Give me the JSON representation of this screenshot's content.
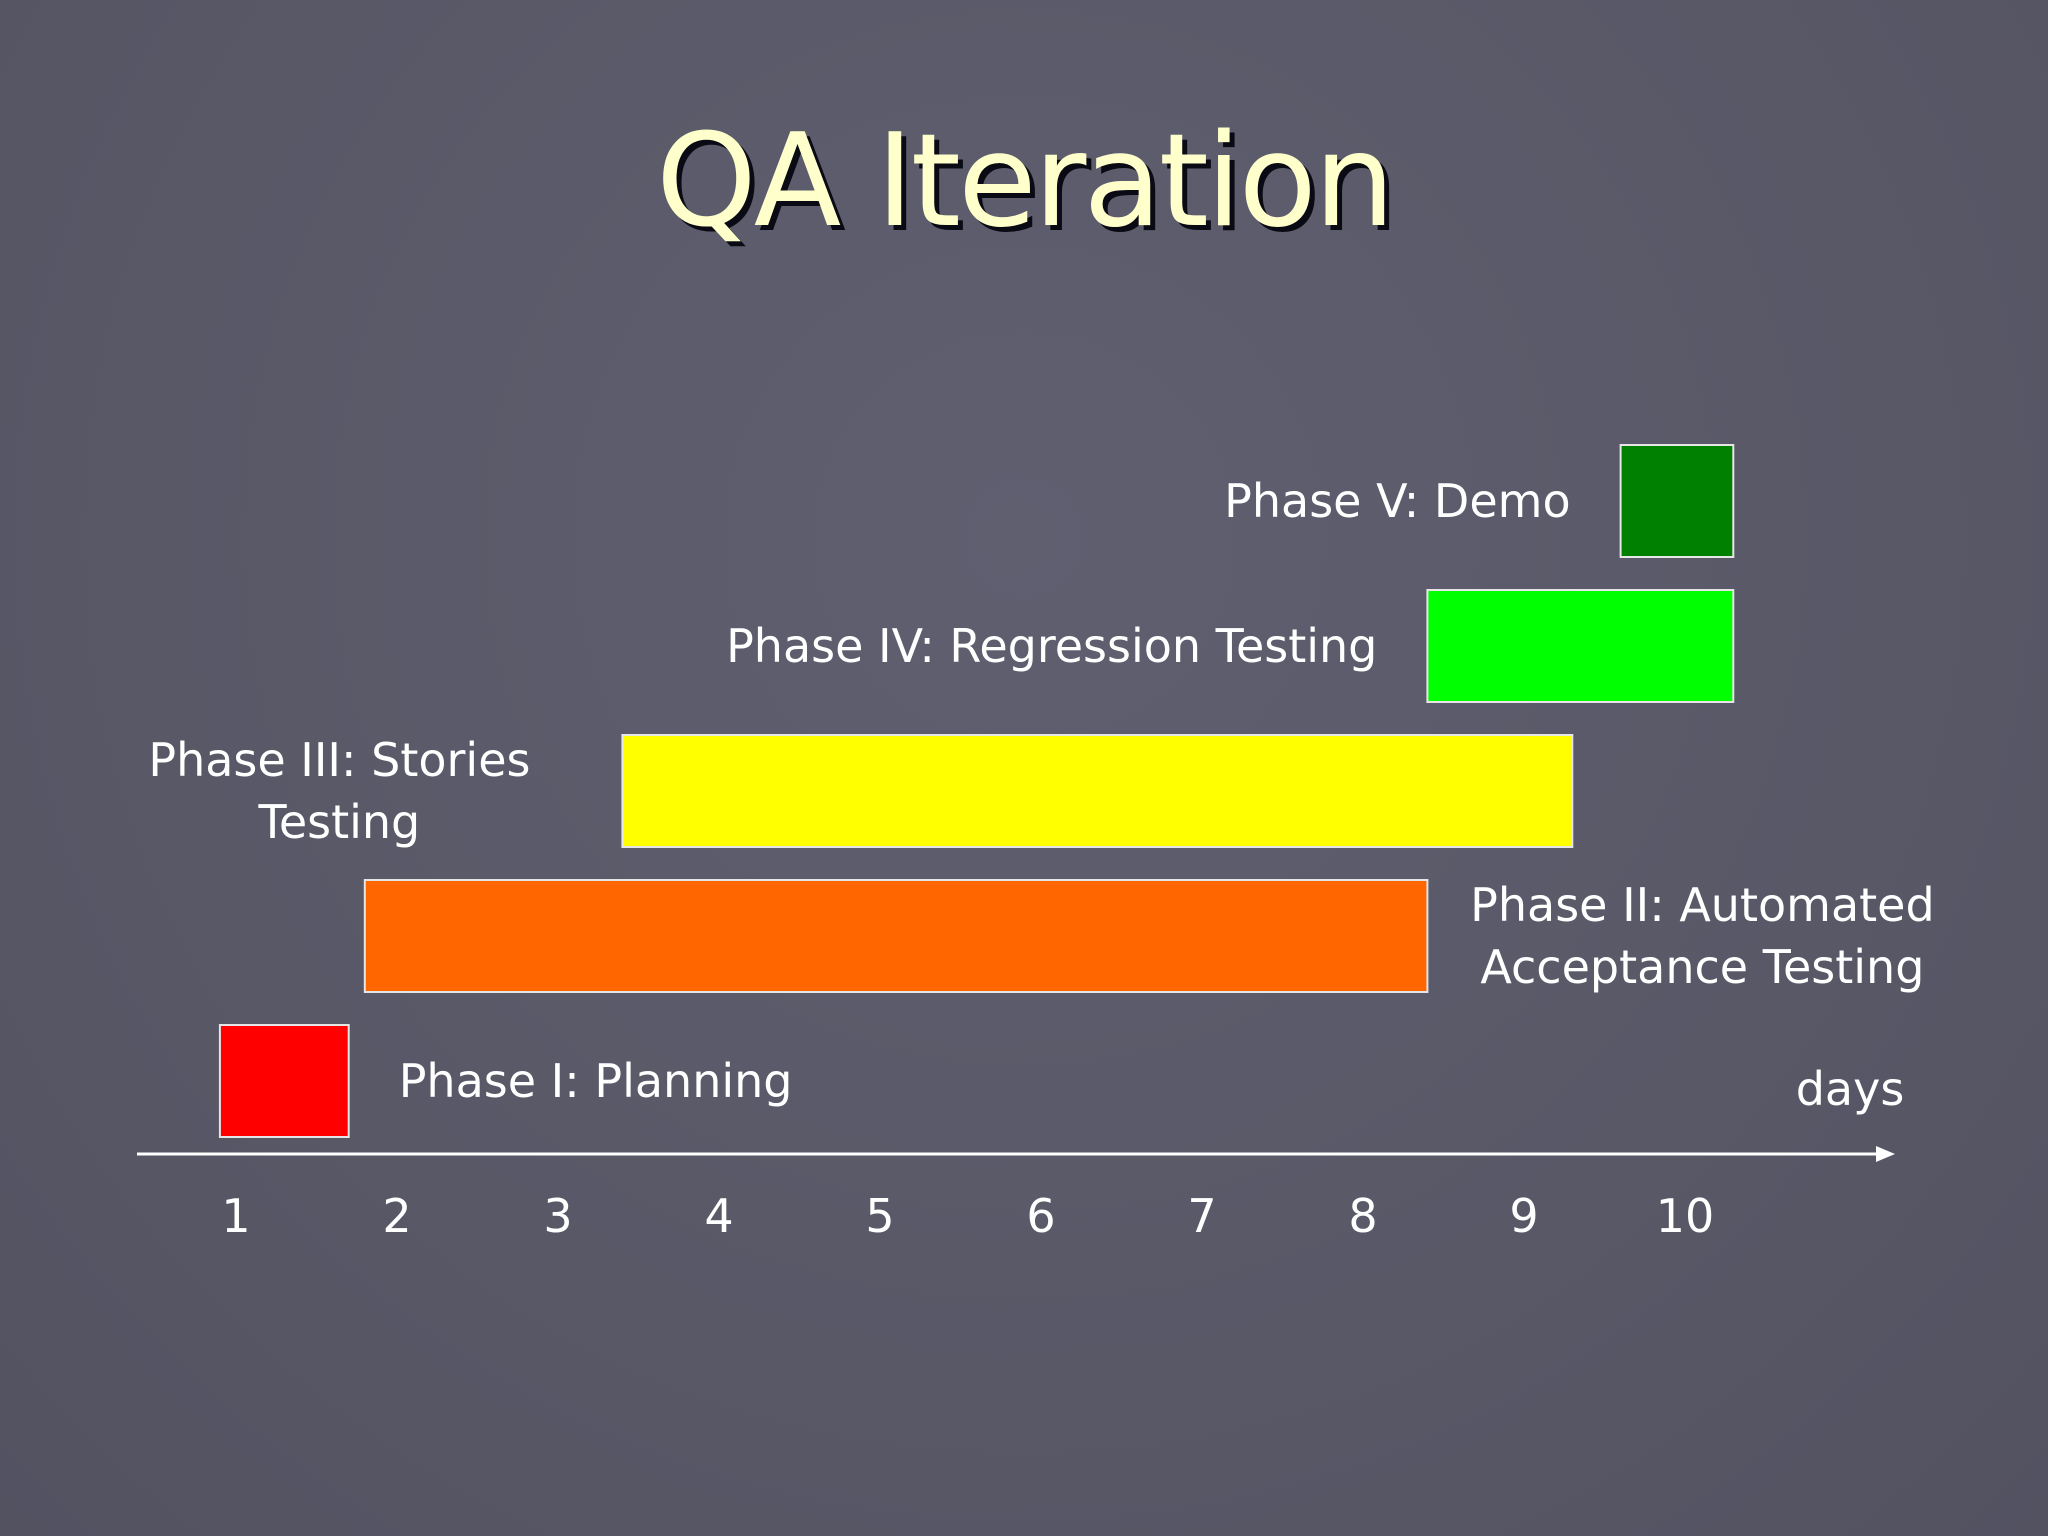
{
  "slide": {
    "title": "QA Iteration"
  },
  "colors": {
    "background": "#5a5a6a",
    "title": "#ffffcc",
    "bar_border": "#e6e6e6",
    "text": "#ffffff"
  },
  "chart_data": {
    "type": "bar",
    "orientation": "horizontal-gantt",
    "title": "QA Iteration",
    "xlabel": "days",
    "x_ticks": [
      1,
      2,
      3,
      4,
      5,
      6,
      7,
      8,
      9,
      10
    ],
    "xlim": [
      0.4,
      11.2
    ],
    "grid": false,
    "legend": "none",
    "tasks": [
      {
        "label_lines": [
          "Phase I: Planning"
        ],
        "start": 0.9,
        "end": 1.7,
        "color": "#ff0000",
        "label_side": "right"
      },
      {
        "label_lines": [
          "Phase II: Automated",
          "Acceptance Testing"
        ],
        "start": 1.8,
        "end": 8.4,
        "color": "#ff6600",
        "label_side": "right"
      },
      {
        "label_lines": [
          "Phase III: Stories",
          "Testing"
        ],
        "start": 3.4,
        "end": 9.3,
        "color": "#ffff00",
        "label_side": "left"
      },
      {
        "label_lines": [
          "Phase IV: Regression Testing"
        ],
        "start": 8.4,
        "end": 10.3,
        "color": "#00ff00",
        "label_side": "left"
      },
      {
        "label_lines": [
          "Phase V: Demo"
        ],
        "start": 9.6,
        "end": 10.3,
        "color": "#008000",
        "label_side": "left"
      }
    ]
  }
}
